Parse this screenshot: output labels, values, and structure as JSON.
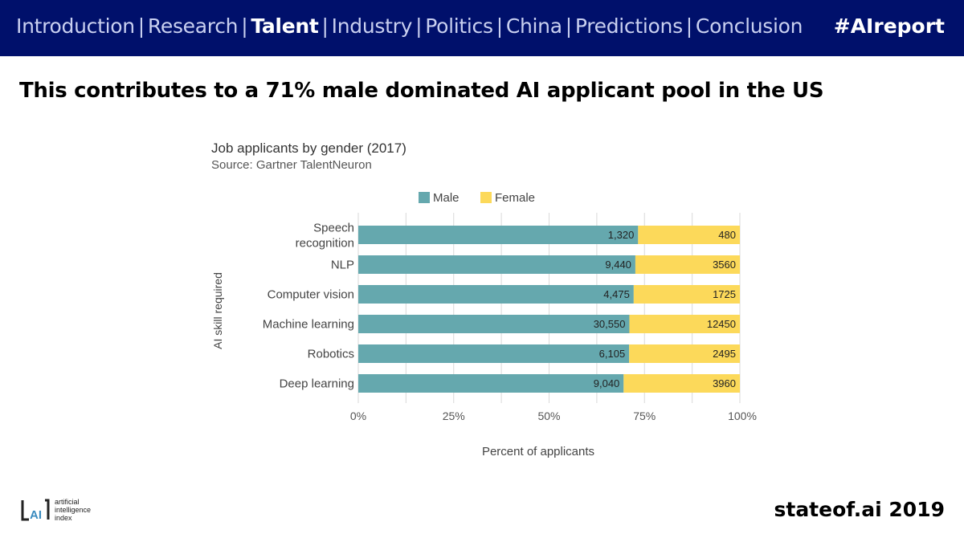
{
  "nav": {
    "items": [
      {
        "label": "Introduction",
        "active": false
      },
      {
        "label": "Research",
        "active": false
      },
      {
        "label": "Talent",
        "active": true
      },
      {
        "label": "Industry",
        "active": false
      },
      {
        "label": "Politics",
        "active": false
      },
      {
        "label": "China",
        "active": false
      },
      {
        "label": "Predictions",
        "active": false
      },
      {
        "label": "Conclusion",
        "active": false
      }
    ],
    "hashtag": "#AIreport"
  },
  "headline": "This contributes to a 71% male dominated AI applicant pool in the US",
  "logo": {
    "line1": "artificial",
    "line2": "intelligence",
    "line3": "index"
  },
  "footer": "stateof.ai 2019",
  "colors": {
    "male": "#65a8ae",
    "female": "#fcd95a",
    "navbar": "#00106b"
  },
  "chart_data": {
    "type": "bar",
    "stacked": "percent",
    "title": "Job applicants by gender (2017)",
    "subtitle": "Source: Gartner TalentNeuron",
    "xlabel": "Percent of applicants",
    "ylabel": "AI skill required",
    "xlim": [
      0,
      100
    ],
    "xticks": [
      "0%",
      "25%",
      "50%",
      "75%",
      "100%"
    ],
    "legend": [
      "Male",
      "Female"
    ],
    "categories": [
      [
        "Speech",
        "recognition"
      ],
      [
        "NLP"
      ],
      [
        "Computer vision"
      ],
      [
        "Machine learning"
      ],
      [
        "Robotics"
      ],
      [
        "Deep learning"
      ]
    ],
    "series": [
      {
        "name": "Male",
        "values": [
          1320,
          9440,
          4475,
          30550,
          6105,
          9040
        ],
        "labels": [
          "1,320",
          "9,440",
          "4,475",
          "30,550",
          "6,105",
          "9,040"
        ]
      },
      {
        "name": "Female",
        "values": [
          480,
          3560,
          1725,
          12450,
          2495,
          3960
        ],
        "labels": [
          "480",
          "3560",
          "1725",
          "12450",
          "2495",
          "3960"
        ]
      }
    ]
  }
}
